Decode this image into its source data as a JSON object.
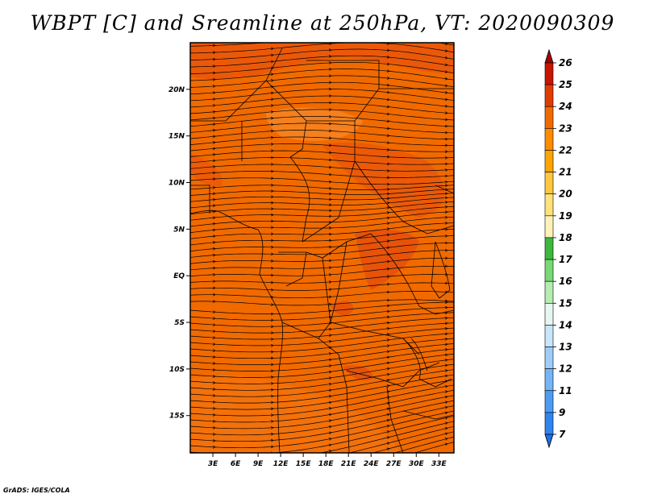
{
  "title": "WBPT [C] and Sreamline at 250hPa, VT: 2020090309",
  "footer": "GrADS: IGES/COLA",
  "map": {
    "lon_range": [
      0,
      35
    ],
    "lat_range": [
      -19,
      25
    ],
    "lat_ticks": [
      {
        "value": 20,
        "label": "20N"
      },
      {
        "value": 15,
        "label": "15N"
      },
      {
        "value": 10,
        "label": "10N"
      },
      {
        "value": 5,
        "label": "5N"
      },
      {
        "value": 0,
        "label": "EQ"
      },
      {
        "value": -5,
        "label": "5S"
      },
      {
        "value": -10,
        "label": "10S"
      },
      {
        "value": -15,
        "label": "15S"
      }
    ],
    "lon_ticks": [
      {
        "value": 3,
        "label": "3E"
      },
      {
        "value": 6,
        "label": "6E"
      },
      {
        "value": 9,
        "label": "9E"
      },
      {
        "value": 12,
        "label": "12E"
      },
      {
        "value": 15,
        "label": "15E"
      },
      {
        "value": 18,
        "label": "18E"
      },
      {
        "value": 21,
        "label": "21E"
      },
      {
        "value": 24,
        "label": "24E"
      },
      {
        "value": 27,
        "label": "27E"
      },
      {
        "value": 30,
        "label": "30E"
      },
      {
        "value": 33,
        "label": "33E"
      }
    ],
    "base_color": "#f06a00"
  },
  "colorbar": {
    "labels": [
      "7",
      "9",
      "11",
      "12",
      "13",
      "14",
      "15",
      "16",
      "17",
      "18",
      "19",
      "20",
      "21",
      "22",
      "23",
      "24",
      "25",
      "26"
    ],
    "colors": [
      "#1e6ee6",
      "#2f85f0",
      "#4c9cf5",
      "#75b5f7",
      "#a0cdf8",
      "#c9e6fa",
      "#e6f7f0",
      "#b5ecb0",
      "#78d875",
      "#3cb83c",
      "#fff2b8",
      "#ffe27a",
      "#ffc740",
      "#ffa500",
      "#ff8c00",
      "#f06a00",
      "#e03c00",
      "#c81400",
      "#a50000"
    ]
  }
}
